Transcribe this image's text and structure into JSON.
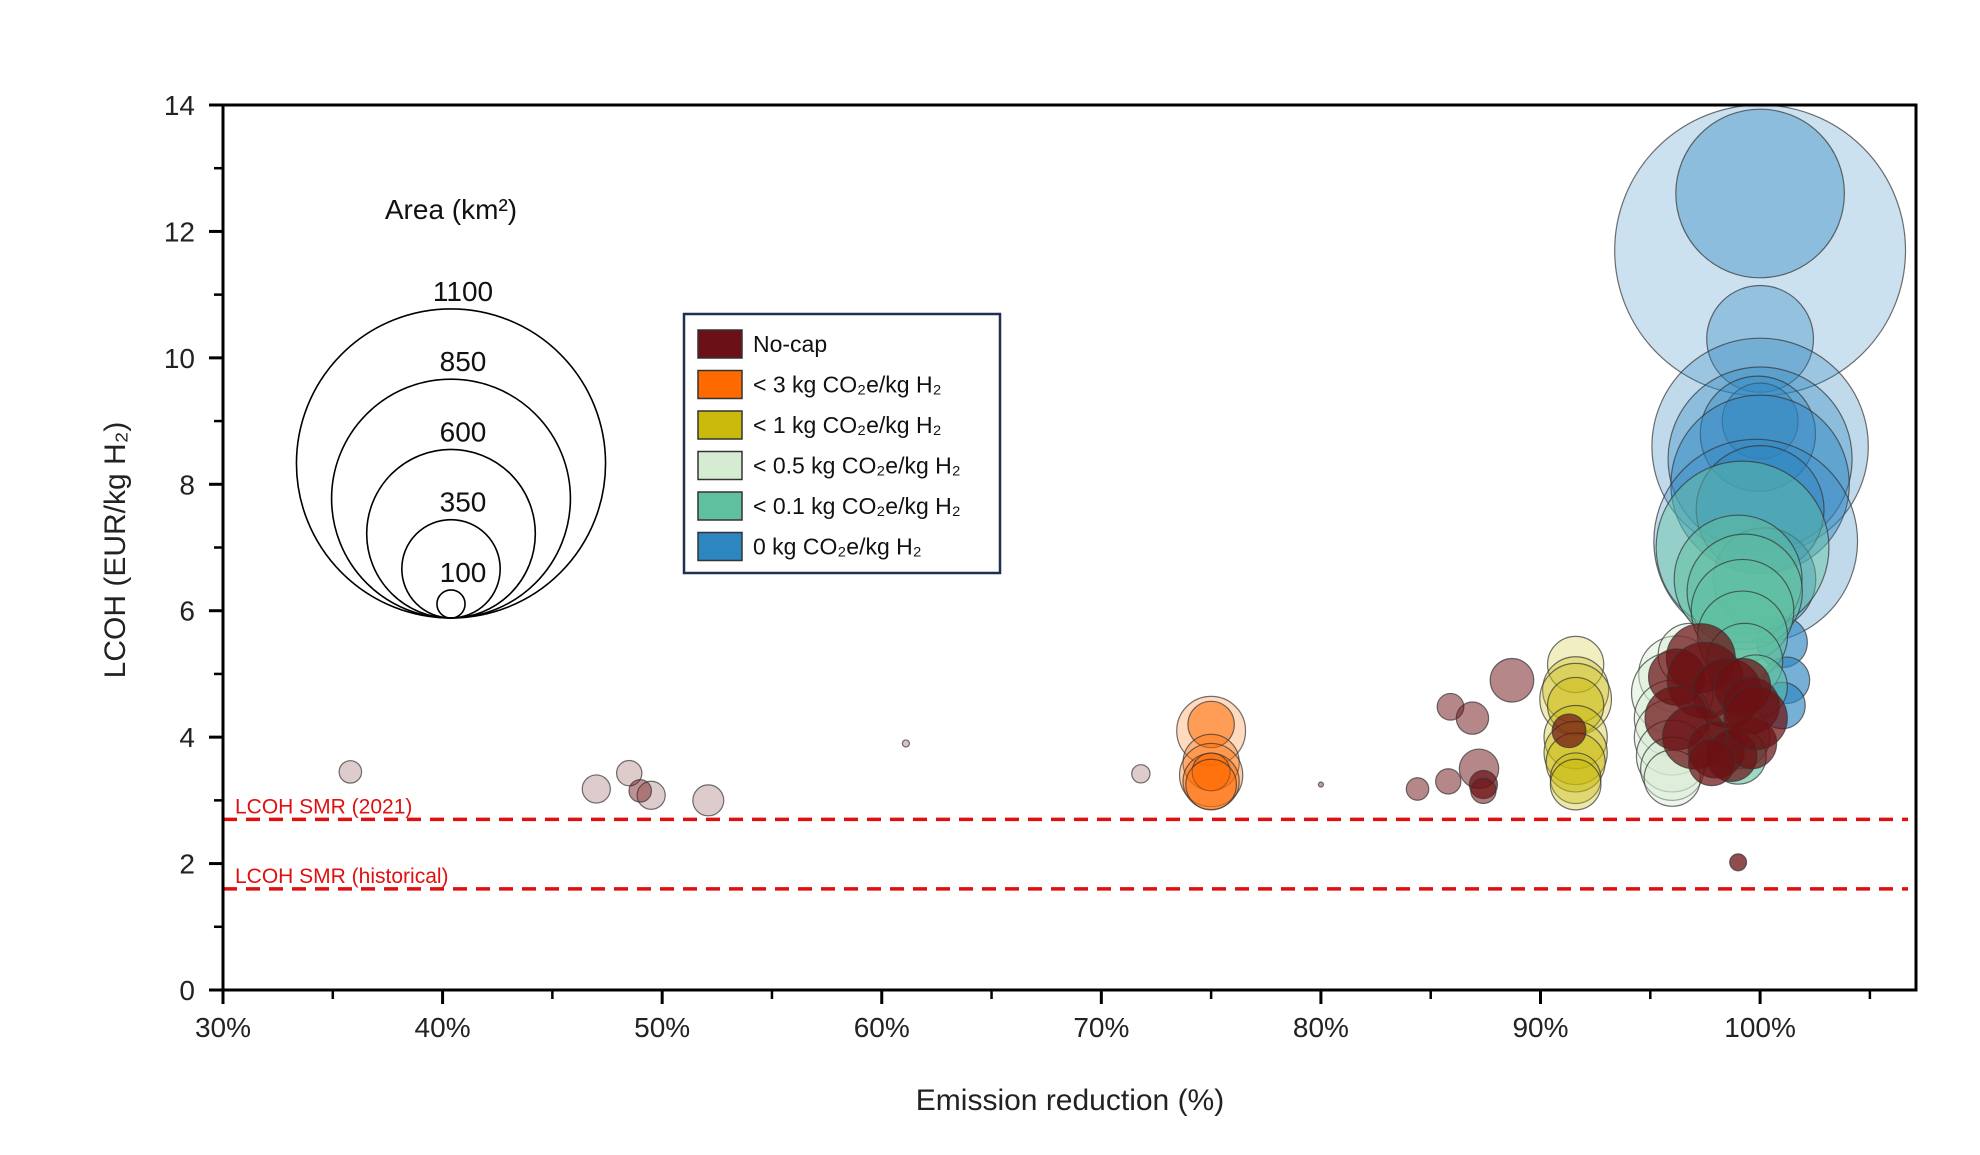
{
  "chart_data": {
    "type": "scatter",
    "subtype": "bubble",
    "xlabel": "Emission reduction (%)",
    "ylabel": "LCOH (EUR/kg H₂)",
    "xlim": [
      30,
      107.1
    ],
    "ylim": [
      0,
      14
    ],
    "x_ticks": [
      "30%",
      "40%",
      "50%",
      "60%",
      "70%",
      "80%",
      "90%",
      "100%"
    ],
    "x_tick_values": [
      30,
      40,
      50,
      60,
      70,
      80,
      90,
      100
    ],
    "y_ticks": [
      "0",
      "2",
      "4",
      "6",
      "8",
      "10",
      "12",
      "14"
    ],
    "y_tick_values": [
      0,
      2,
      4,
      6,
      8,
      10,
      12,
      14
    ],
    "grid": false,
    "legend_placement": "top-center",
    "categories": [
      {
        "key": "nocap",
        "label": "No-cap",
        "color": "#6b1014"
      },
      {
        "key": "c3",
        "label": "< 3 kg CO₂e/kg H₂",
        "color": "#ff6a00"
      },
      {
        "key": "c1",
        "label": "< 1 kg CO₂e/kg H₂",
        "color": "#c9ba0c"
      },
      {
        "key": "c05",
        "label": "< 0.5 kg CO₂e/kg H₂",
        "color": "#d6ecd2"
      },
      {
        "key": "c01",
        "label": "< 0.1 kg CO₂e/kg H₂",
        "color": "#5fc0a0"
      },
      {
        "key": "c0",
        "label": "0 kg CO₂e/kg H₂",
        "color": "#2e86c1"
      }
    ],
    "size_legend": {
      "title": "Area (km²)",
      "values": [
        1100,
        850,
        600,
        350,
        100
      ],
      "labels": [
        "1100",
        "850",
        "600",
        "350",
        "100"
      ]
    },
    "reference_lines": [
      {
        "y": 2.7,
        "label": "LCOH SMR (2021)",
        "color": "#e01010"
      },
      {
        "y": 1.6,
        "label": "LCOH SMR (historical)",
        "color": "#e01010"
      }
    ],
    "points": [
      {
        "x": 35.8,
        "y": 3.45,
        "area": 80,
        "cat": "nocap",
        "opacity": 0.22
      },
      {
        "x": 47.0,
        "y": 3.18,
        "area": 100,
        "cat": "nocap",
        "opacity": 0.22
      },
      {
        "x": 48.5,
        "y": 3.43,
        "area": 90,
        "cat": "nocap",
        "opacity": 0.22
      },
      {
        "x": 49.5,
        "y": 3.08,
        "area": 100,
        "cat": "nocap",
        "opacity": 0.22
      },
      {
        "x": 49.0,
        "y": 3.15,
        "area": 80,
        "cat": "nocap",
        "opacity": 0.45
      },
      {
        "x": 52.1,
        "y": 3.0,
        "area": 110,
        "cat": "nocap",
        "opacity": 0.22
      },
      {
        "x": 61.1,
        "y": 3.9,
        "area": 25,
        "cat": "nocap",
        "opacity": 0.25
      },
      {
        "x": 71.8,
        "y": 3.42,
        "area": 65,
        "cat": "nocap",
        "opacity": 0.22
      },
      {
        "x": 80.0,
        "y": 3.25,
        "area": 18,
        "cat": "nocap",
        "opacity": 0.4
      },
      {
        "x": 84.4,
        "y": 3.18,
        "area": 80,
        "cat": "nocap",
        "opacity": 0.5
      },
      {
        "x": 85.8,
        "y": 3.3,
        "area": 90,
        "cat": "nocap",
        "opacity": 0.5
      },
      {
        "x": 85.9,
        "y": 4.48,
        "area": 95,
        "cat": "nocap",
        "opacity": 0.5
      },
      {
        "x": 86.9,
        "y": 4.3,
        "area": 115,
        "cat": "nocap",
        "opacity": 0.5
      },
      {
        "x": 87.2,
        "y": 3.5,
        "area": 140,
        "cat": "nocap",
        "opacity": 0.5
      },
      {
        "x": 87.4,
        "y": 3.25,
        "area": 100,
        "cat": "nocap",
        "opacity": 0.7
      },
      {
        "x": 87.4,
        "y": 3.15,
        "area": 90,
        "cat": "nocap",
        "opacity": 0.55
      },
      {
        "x": 88.7,
        "y": 4.9,
        "area": 155,
        "cat": "nocap",
        "opacity": 0.5
      },
      {
        "x": 99.0,
        "y": 2.02,
        "area": 60,
        "cat": "nocap",
        "opacity": 0.75
      },
      {
        "x": 75.0,
        "y": 4.1,
        "area": 245,
        "cat": "c3",
        "opacity": 0.25
      },
      {
        "x": 75.0,
        "y": 4.2,
        "area": 165,
        "cat": "c3",
        "opacity": 0.55
      },
      {
        "x": 75.0,
        "y": 3.6,
        "area": 200,
        "cat": "c3",
        "opacity": 0.35
      },
      {
        "x": 75.0,
        "y": 3.4,
        "area": 225,
        "cat": "c3",
        "opacity": 0.35
      },
      {
        "x": 75.0,
        "y": 3.3,
        "area": 200,
        "cat": "c3",
        "opacity": 0.45
      },
      {
        "x": 75.0,
        "y": 3.45,
        "area": 135,
        "cat": "c3",
        "opacity": 0.55
      },
      {
        "x": 75.0,
        "y": 3.25,
        "area": 180,
        "cat": "c3",
        "opacity": 0.45
      },
      {
        "x": 91.6,
        "y": 5.15,
        "area": 200,
        "cat": "c1",
        "opacity": 0.25
      },
      {
        "x": 91.6,
        "y": 4.75,
        "area": 235,
        "cat": "c1",
        "opacity": 0.35
      },
      {
        "x": 91.6,
        "y": 4.6,
        "area": 255,
        "cat": "c1",
        "opacity": 0.3
      },
      {
        "x": 91.6,
        "y": 4.5,
        "area": 200,
        "cat": "c1",
        "opacity": 0.45
      },
      {
        "x": 91.6,
        "y": 4.0,
        "area": 225,
        "cat": "c1",
        "opacity": 0.35
      },
      {
        "x": 91.6,
        "y": 3.75,
        "area": 225,
        "cat": "c1",
        "opacity": 0.45
      },
      {
        "x": 91.6,
        "y": 3.6,
        "area": 210,
        "cat": "c1",
        "opacity": 0.45
      },
      {
        "x": 91.6,
        "y": 3.35,
        "area": 180,
        "cat": "c1",
        "opacity": 0.35
      },
      {
        "x": 91.6,
        "y": 3.25,
        "area": 180,
        "cat": "c1",
        "opacity": 0.35
      },
      {
        "x": 91.3,
        "y": 4.1,
        "area": 120,
        "cat": "nocap",
        "opacity": 0.7
      },
      {
        "x": 96.2,
        "y": 5.0,
        "area": 270,
        "cat": "c05",
        "opacity": 0.45
      },
      {
        "x": 96.0,
        "y": 4.7,
        "area": 290,
        "cat": "c05",
        "opacity": 0.45
      },
      {
        "x": 96.0,
        "y": 4.3,
        "area": 270,
        "cat": "c05",
        "opacity": 0.45
      },
      {
        "x": 96.0,
        "y": 4.0,
        "area": 270,
        "cat": "c05",
        "opacity": 0.45
      },
      {
        "x": 96.0,
        "y": 3.7,
        "area": 255,
        "cat": "c05",
        "opacity": 0.45
      },
      {
        "x": 96.0,
        "y": 3.5,
        "area": 225,
        "cat": "c05",
        "opacity": 0.45
      },
      {
        "x": 96.0,
        "y": 3.35,
        "area": 200,
        "cat": "c05",
        "opacity": 0.45
      },
      {
        "x": 96.8,
        "y": 5.3,
        "area": 225,
        "cat": "c05",
        "opacity": 0.45
      },
      {
        "x": 100.0,
        "y": 11.7,
        "area": 1035,
        "cat": "c0",
        "opacity": 0.25
      },
      {
        "x": 100.0,
        "y": 12.6,
        "area": 600,
        "cat": "c0",
        "opacity": 0.4
      },
      {
        "x": 100.0,
        "y": 10.3,
        "area": 380,
        "cat": "c0",
        "opacity": 0.35
      },
      {
        "x": 100.0,
        "y": 8.6,
        "area": 770,
        "cat": "c0",
        "opacity": 0.3
      },
      {
        "x": 100.0,
        "y": 8.4,
        "area": 655,
        "cat": "c0",
        "opacity": 0.35
      },
      {
        "x": 100.0,
        "y": 9.0,
        "area": 270,
        "cat": "c0",
        "opacity": 0.4
      },
      {
        "x": 99.9,
        "y": 8.8,
        "area": 410,
        "cat": "c0",
        "opacity": 0.4
      },
      {
        "x": 100.0,
        "y": 8.0,
        "area": 635,
        "cat": "c0",
        "opacity": 0.45
      },
      {
        "x": 99.8,
        "y": 7.1,
        "area": 725,
        "cat": "c0",
        "opacity": 0.3
      },
      {
        "x": 100.0,
        "y": 7.6,
        "area": 455,
        "cat": "c0",
        "opacity": 0.45
      },
      {
        "x": 100.2,
        "y": 6.5,
        "area": 365,
        "cat": "c0",
        "opacity": 0.45
      },
      {
        "x": 101.0,
        "y": 5.5,
        "area": 180,
        "cat": "c0",
        "opacity": 0.65
      },
      {
        "x": 101.2,
        "y": 4.9,
        "area": 165,
        "cat": "c0",
        "opacity": 0.65
      },
      {
        "x": 101.0,
        "y": 4.5,
        "area": 165,
        "cat": "c0",
        "opacity": 0.65
      },
      {
        "x": 99.2,
        "y": 7.0,
        "area": 615,
        "cat": "c01",
        "opacity": 0.45
      },
      {
        "x": 99.0,
        "y": 6.5,
        "area": 455,
        "cat": "c01",
        "opacity": 0.5
      },
      {
        "x": 99.3,
        "y": 6.3,
        "area": 410,
        "cat": "c01",
        "opacity": 0.5
      },
      {
        "x": 99.2,
        "y": 6.0,
        "area": 365,
        "cat": "c01",
        "opacity": 0.55
      },
      {
        "x": 99.2,
        "y": 5.6,
        "area": 320,
        "cat": "c01",
        "opacity": 0.55
      },
      {
        "x": 99.3,
        "y": 5.2,
        "area": 270,
        "cat": "c01",
        "opacity": 0.55
      },
      {
        "x": 99.8,
        "y": 4.8,
        "area": 225,
        "cat": "c01",
        "opacity": 0.55
      },
      {
        "x": 99.0,
        "y": 4.0,
        "area": 225,
        "cat": "c01",
        "opacity": 0.6
      },
      {
        "x": 99.0,
        "y": 3.7,
        "area": 200,
        "cat": "c01",
        "opacity": 0.6
      },
      {
        "x": 97.3,
        "y": 5.25,
        "area": 245,
        "cat": "nocap",
        "opacity": 0.72
      },
      {
        "x": 96.2,
        "y": 4.95,
        "area": 200,
        "cat": "nocap",
        "opacity": 0.72
      },
      {
        "x": 97.5,
        "y": 4.9,
        "area": 270,
        "cat": "nocap",
        "opacity": 0.72
      },
      {
        "x": 98.5,
        "y": 4.7,
        "area": 245,
        "cat": "nocap",
        "opacity": 0.72
      },
      {
        "x": 99.2,
        "y": 4.8,
        "area": 200,
        "cat": "nocap",
        "opacity": 0.72
      },
      {
        "x": 99.6,
        "y": 4.5,
        "area": 200,
        "cat": "nocap",
        "opacity": 0.72
      },
      {
        "x": 96.2,
        "y": 4.3,
        "area": 225,
        "cat": "nocap",
        "opacity": 0.72
      },
      {
        "x": 97.0,
        "y": 4.0,
        "area": 225,
        "cat": "nocap",
        "opacity": 0.72
      },
      {
        "x": 98.0,
        "y": 3.8,
        "area": 200,
        "cat": "nocap",
        "opacity": 0.72
      },
      {
        "x": 98.7,
        "y": 3.7,
        "area": 180,
        "cat": "nocap",
        "opacity": 0.72
      },
      {
        "x": 99.6,
        "y": 3.9,
        "area": 180,
        "cat": "nocap",
        "opacity": 0.72
      },
      {
        "x": 99.8,
        "y": 4.3,
        "area": 225,
        "cat": "nocap",
        "opacity": 0.72
      },
      {
        "x": 97.8,
        "y": 3.6,
        "area": 165,
        "cat": "nocap",
        "opacity": 0.72
      }
    ]
  }
}
